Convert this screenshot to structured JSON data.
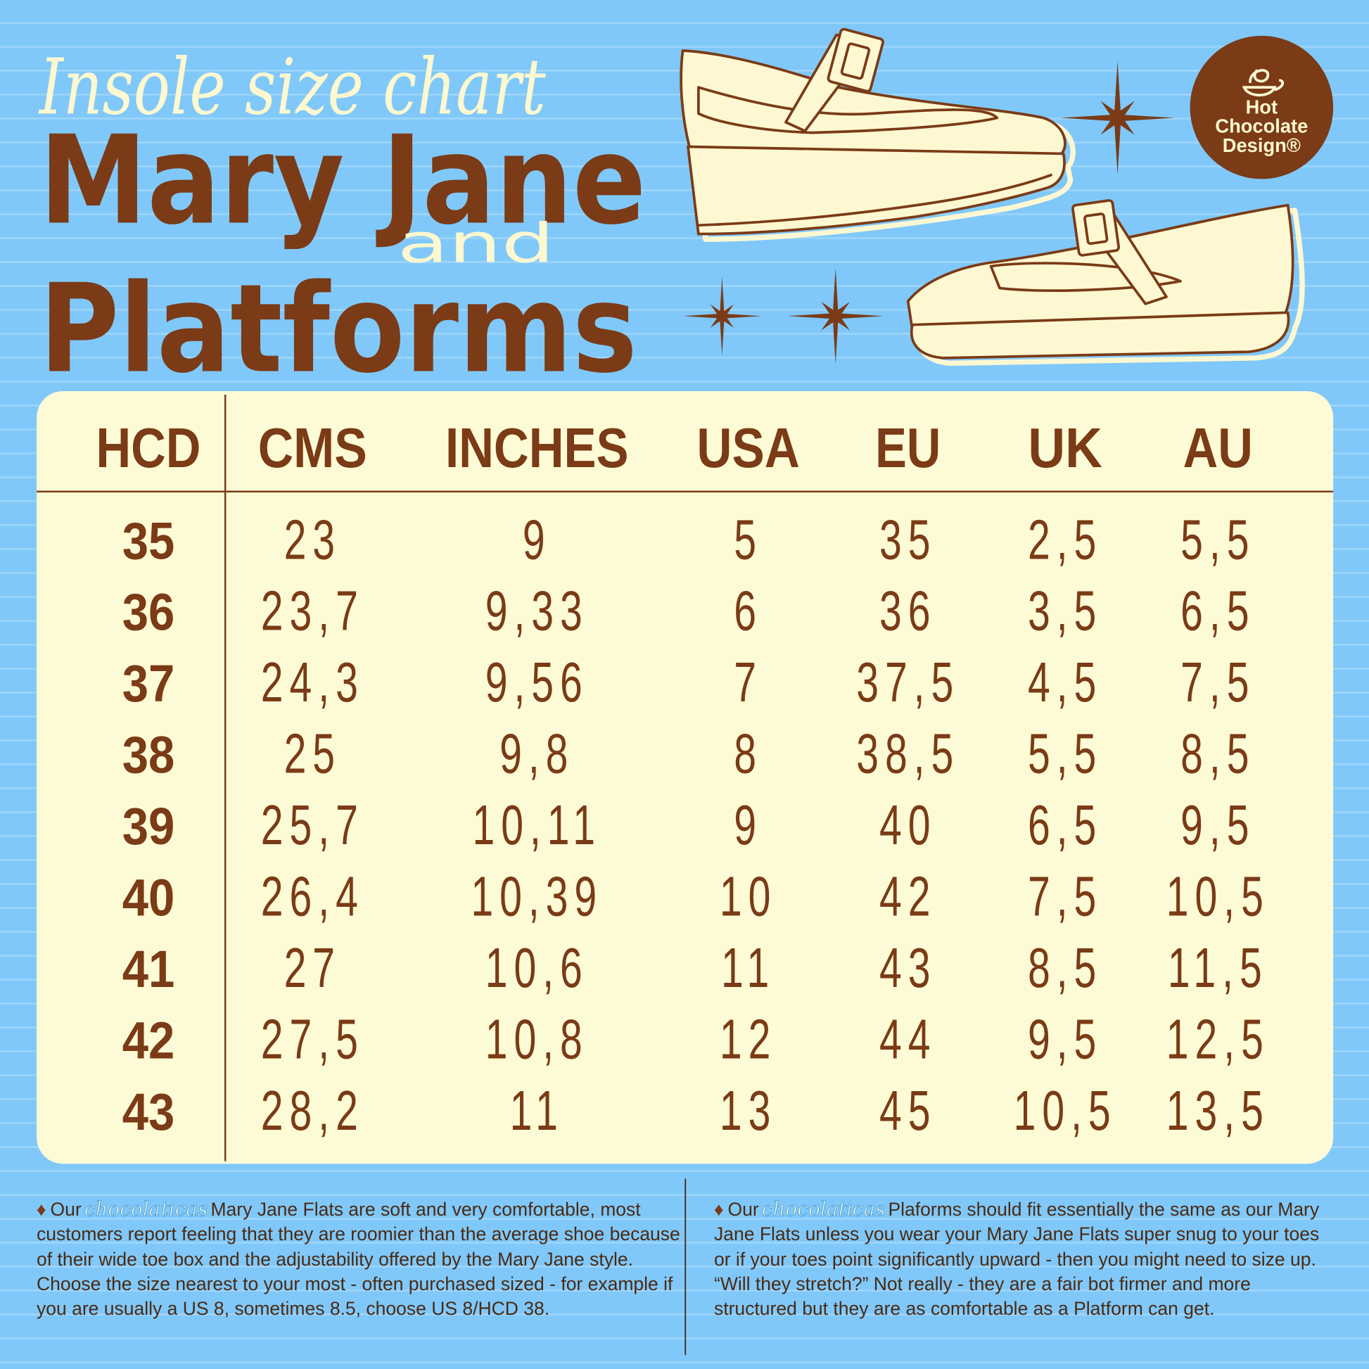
{
  "header": {
    "script_title": "Insole size chart",
    "title_line1": "Mary Jane",
    "connector": "and",
    "title_line2": "Platforms"
  },
  "logo": {
    "lines": [
      "Hot",
      "Chocolate",
      "Design®"
    ]
  },
  "table": {
    "columns": [
      "HCD",
      "CMS",
      "INCHES",
      "USA",
      "EU",
      "UK",
      "AU"
    ],
    "rows": [
      [
        "35",
        "23",
        "9",
        "5",
        "35",
        "2,5",
        "5,5"
      ],
      [
        "36",
        "23,7",
        "9,33",
        "6",
        "36",
        "3,5",
        "6,5"
      ],
      [
        "37",
        "24,3",
        "9,56",
        "7",
        "37,5",
        "4,5",
        "7,5"
      ],
      [
        "38",
        "25",
        "9,8",
        "8",
        "38,5",
        "5,5",
        "8,5"
      ],
      [
        "39",
        "25,7",
        "10,11",
        "9",
        "40",
        "6,5",
        "9,5"
      ],
      [
        "40",
        "26,4",
        "10,39",
        "10",
        "42",
        "7,5",
        "10,5"
      ],
      [
        "41",
        "27",
        "10,6",
        "11",
        "43",
        "8,5",
        "11,5"
      ],
      [
        "42",
        "27,5",
        "10,8",
        "12",
        "44",
        "9,5",
        "12,5"
      ],
      [
        "43",
        "28,2",
        "11",
        "13",
        "45",
        "10,5",
        "13,5"
      ]
    ]
  },
  "notes": [
    {
      "bullet": "♦",
      "lead": "Our",
      "brand": "chocolaticas",
      "text": "Mary Jane Flats are soft and very comfortable, most customers report feeling that they are roomier than the average shoe because of their wide toe box and the adjustability offered by the Mary Jane style. Choose the size nearest to your most - often purchased sized - for example if you are usually a US 8, sometimes 8.5, choose US 8/HCD 38."
    },
    {
      "bullet": "♦",
      "lead": "Our",
      "brand": "chocolaticas",
      "text": "Plaforms should fit essentially the same as our Mary Jane Flats unless you wear your Mary Jane Flats super snug to your toes or if your toes point significantly upward - then you might need to size  up. “Will they stretch?” Not really - they are a fair bot firmer and more structured but they are as comfortable as a Platform can get."
    }
  ]
}
